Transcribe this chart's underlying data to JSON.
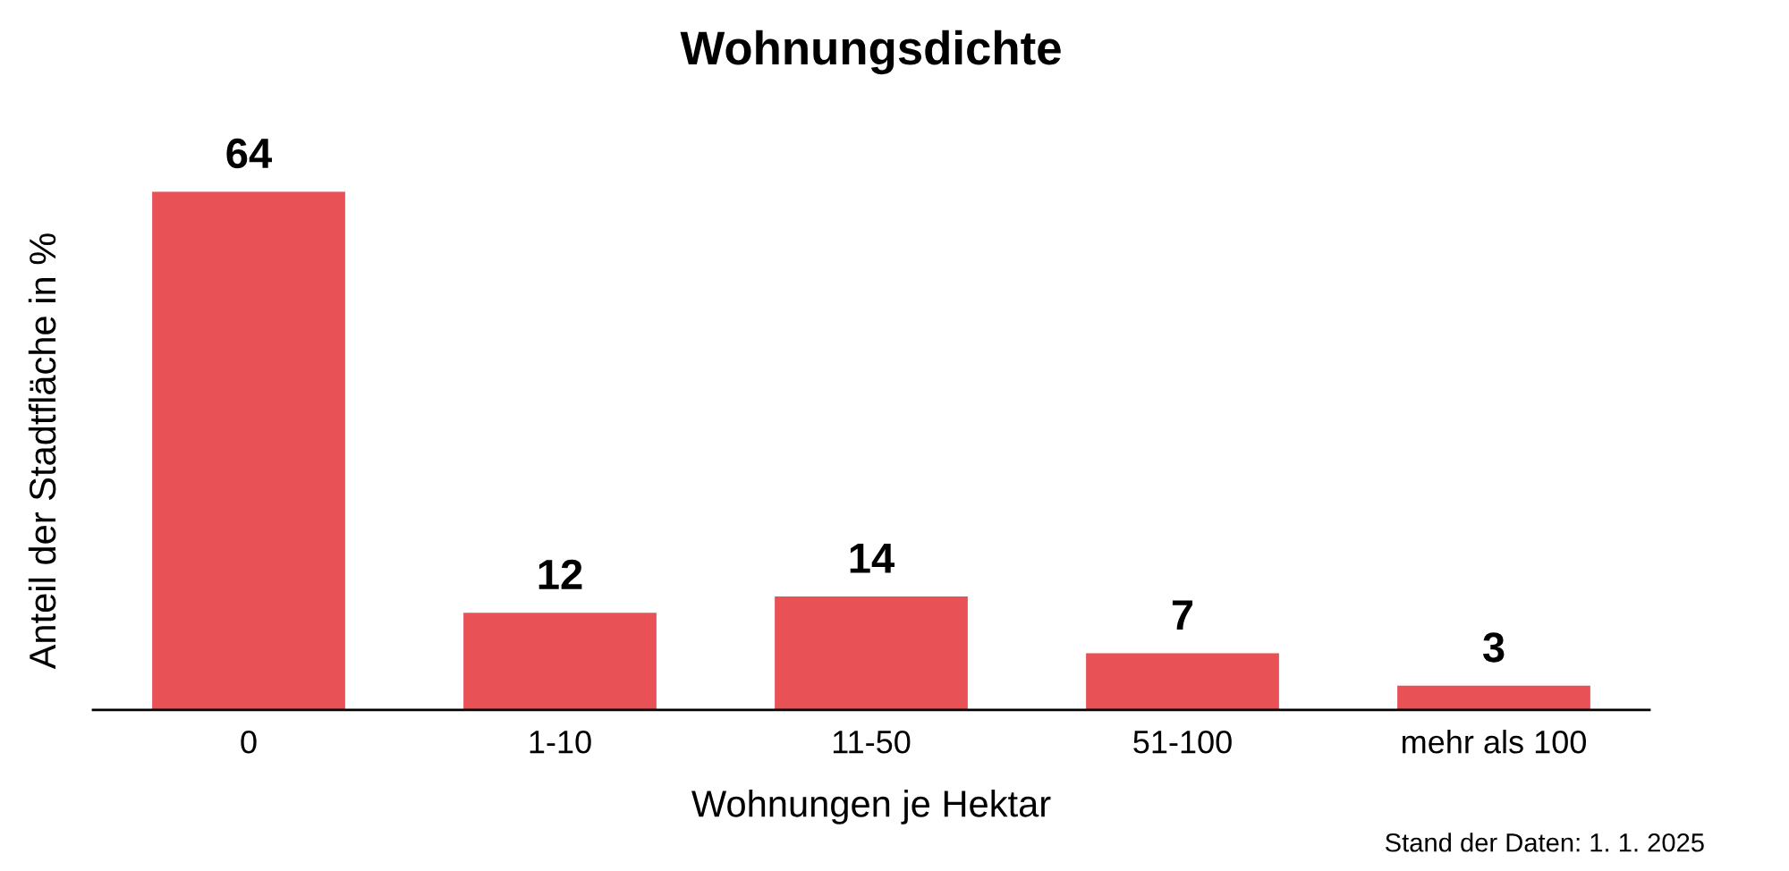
{
  "chart_data": {
    "type": "bar",
    "title": "Wohnungsdichte",
    "xlabel": "Wohnungen je Hektar",
    "ylabel": "Anteil der Stadtfläche in %",
    "categories": [
      "0",
      "1-10",
      "11-50",
      "51-100",
      "mehr als 100"
    ],
    "values": [
      64,
      12,
      14,
      7,
      3
    ],
    "color": "#e85155",
    "data_labels": true,
    "tick_labels": "x",
    "annotations": [
      "Stand der Daten: 1. 1. 2025"
    ]
  }
}
